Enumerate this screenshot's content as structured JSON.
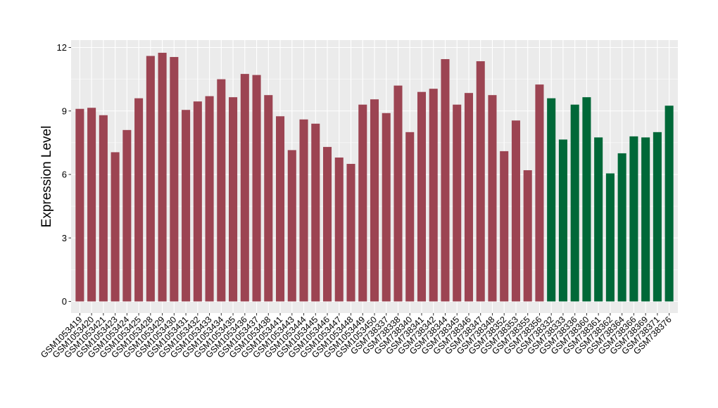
{
  "chart_data": {
    "type": "bar",
    "title": "",
    "xlabel": "",
    "ylabel": "Expression Level",
    "ylim": [
      0,
      12.4
    ],
    "yticks": [
      0,
      3,
      6,
      9,
      12
    ],
    "grid": true,
    "legend": "none",
    "colors": {
      "group_a": "#9c4452",
      "group_b": "#006838",
      "panel": "#ebebeb",
      "gridline": "#ffffff"
    },
    "categories": [
      "GSM1053419",
      "GSM1053420",
      "GSM1053421",
      "GSM1053423",
      "GSM1053424",
      "GSM1053425",
      "GSM1053428",
      "GSM1053429",
      "GSM1053430",
      "GSM1053431",
      "GSM1053432",
      "GSM1053433",
      "GSM1053434",
      "GSM1053435",
      "GSM1053436",
      "GSM1053437",
      "GSM1053438",
      "GSM1053441",
      "GSM1053443",
      "GSM1053444",
      "GSM1053445",
      "GSM1053446",
      "GSM1053447",
      "GSM1053448",
      "GSM1053449",
      "GSM1053450",
      "GSM738337",
      "GSM738338",
      "GSM738340",
      "GSM738341",
      "GSM738342",
      "GSM738344",
      "GSM738345",
      "GSM738346",
      "GSM738347",
      "GSM738348",
      "GSM738352",
      "GSM738353",
      "GSM738355",
      "GSM738356",
      "GSM738332",
      "GSM738333",
      "GSM738336",
      "GSM738360",
      "GSM738361",
      "GSM738362",
      "GSM738364",
      "GSM738366",
      "GSM738369",
      "GSM738371",
      "GSM738376"
    ],
    "values": [
      9.1,
      9.15,
      8.8,
      7.05,
      8.1,
      9.6,
      11.6,
      11.75,
      11.55,
      9.05,
      9.45,
      9.7,
      10.5,
      9.65,
      10.75,
      10.7,
      9.75,
      8.75,
      7.15,
      8.6,
      8.4,
      7.3,
      6.8,
      6.5,
      9.3,
      9.55,
      8.9,
      10.2,
      8.0,
      9.9,
      10.05,
      11.45,
      9.3,
      9.85,
      11.35,
      9.75,
      7.1,
      8.55,
      6.2,
      10.25,
      9.6,
      7.65,
      9.3,
      9.65,
      7.75,
      6.05,
      7.0,
      7.8,
      7.75,
      8.0,
      9.25
    ],
    "groups": [
      "a",
      "a",
      "a",
      "a",
      "a",
      "a",
      "a",
      "a",
      "a",
      "a",
      "a",
      "a",
      "a",
      "a",
      "a",
      "a",
      "a",
      "a",
      "a",
      "a",
      "a",
      "a",
      "a",
      "a",
      "a",
      "a",
      "a",
      "a",
      "a",
      "a",
      "a",
      "a",
      "a",
      "a",
      "a",
      "a",
      "a",
      "a",
      "a",
      "a",
      "b",
      "b",
      "b",
      "b",
      "b",
      "b",
      "b",
      "b",
      "b",
      "b",
      "b"
    ]
  }
}
